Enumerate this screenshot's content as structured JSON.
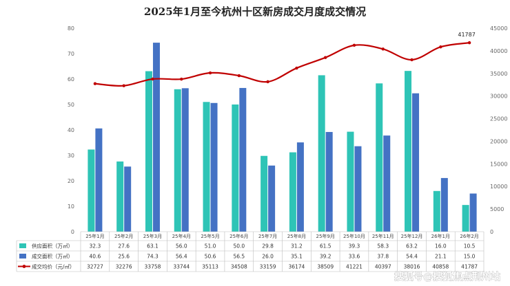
{
  "chart_data": {
    "type": "bar",
    "title": "2025年1月至今杭州十区新房成交月度成交情况",
    "categories": [
      "25年1月",
      "25年2月",
      "25年3月",
      "25年4月",
      "25年5月",
      "25年6月",
      "25年7月",
      "25年8月",
      "25年9月",
      "25年10月",
      "25年11月",
      "25年12月",
      "26年1月",
      "26年2月"
    ],
    "series": [
      {
        "name": "供应面积（万㎡）",
        "type": "bar",
        "axis": "left",
        "color": "#2ec4b6",
        "values": [
          32.3,
          27.6,
          63.1,
          56.0,
          51.0,
          50.0,
          29.8,
          31.2,
          61.5,
          39.3,
          58.3,
          63.2,
          16.0,
          10.5
        ],
        "display": [
          "32.3",
          "27.6",
          "63.1",
          "56.0",
          "51.0",
          "50.0",
          "29.8",
          "31.2",
          "61.5",
          "39.3",
          "58.3",
          "63.2",
          "16.0",
          "10.5"
        ]
      },
      {
        "name": "成交面积（万㎡）",
        "type": "bar",
        "axis": "left",
        "color": "#4472c4",
        "values": [
          40.6,
          25.6,
          74.3,
          56.4,
          50.6,
          56.5,
          26.0,
          35.1,
          39.2,
          33.6,
          37.8,
          54.4,
          21.1,
          15.0
        ],
        "display": [
          "40.6",
          "25.6",
          "74.3",
          "56.4",
          "50.6",
          "56.5",
          "26.0",
          "35.1",
          "39.2",
          "33.6",
          "37.8",
          "54.4",
          "21.1",
          "15.0"
        ]
      },
      {
        "name": "成交均价（元/㎡）",
        "type": "line",
        "axis": "right",
        "color": "#c00000",
        "values": [
          32727,
          32276,
          33758,
          33744,
          35113,
          34508,
          33159,
          36174,
          38509,
          41221,
          40397,
          38016,
          40858,
          41787
        ],
        "display": [
          "32727",
          "32276",
          "33758",
          "33744",
          "35113",
          "34508",
          "33159",
          "36174",
          "38509",
          "41221",
          "40397",
          "38016",
          "40858",
          "41787"
        ]
      }
    ],
    "y_left": {
      "min": 0,
      "max": 80,
      "ticks": [
        "0",
        "10",
        "20",
        "30",
        "40",
        "50",
        "60",
        "70",
        "80"
      ]
    },
    "y_right": {
      "min": 0,
      "max": 45000,
      "ticks": [
        "0",
        "5000",
        "10000",
        "15000",
        "20000",
        "25000",
        "30000",
        "35000",
        "40000",
        "45000"
      ]
    },
    "annotation": "41787",
    "grid": false,
    "legend_placement": "data-table"
  },
  "watermark": "搜狐号@搜狐焦点荆州站"
}
